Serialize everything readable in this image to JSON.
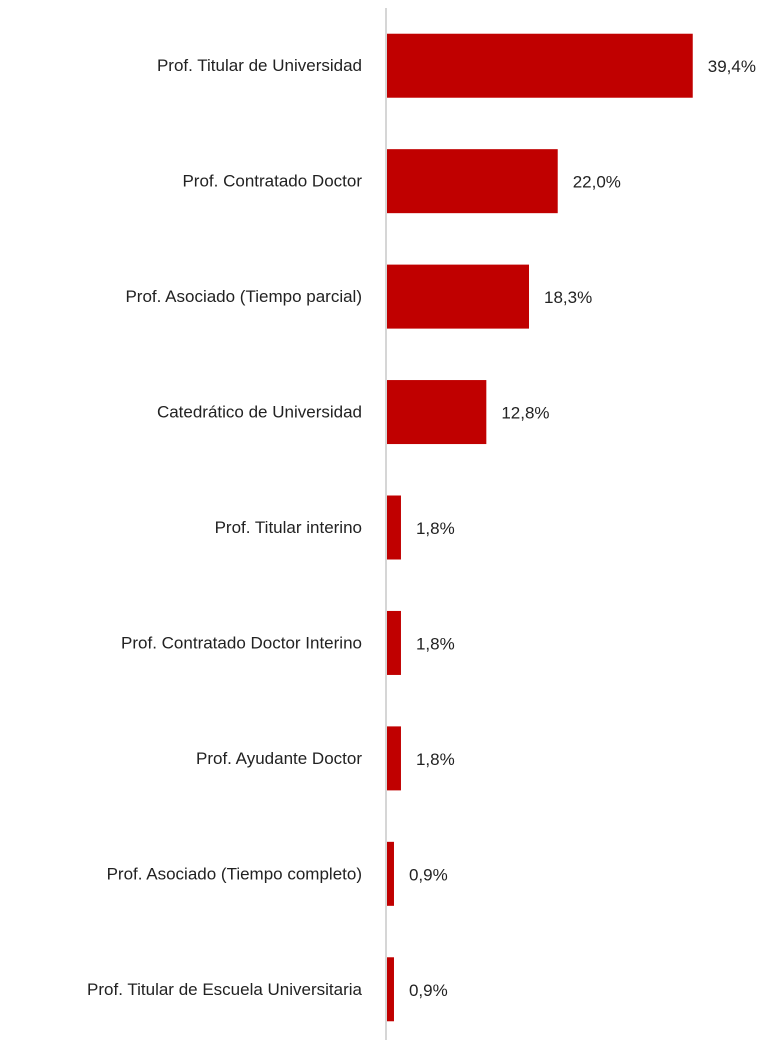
{
  "chart_data": {
    "type": "hbar",
    "categories": [
      "Prof. Titular de Universidad",
      "Prof. Contratado Doctor",
      "Prof. Asociado (Tiempo parcial)",
      "Catedrático de Universidad",
      "Prof. Titular interino",
      "Prof. Contratado Doctor Interino",
      "Prof. Ayudante Doctor",
      "Prof. Asociado (Tiempo completo)",
      "Prof. Titular de Escuela Universitaria"
    ],
    "values": [
      39.4,
      22.0,
      18.3,
      12.8,
      1.8,
      1.8,
      1.8,
      0.9,
      0.9
    ],
    "value_labels": [
      "39,4%",
      "22,0%",
      "18,3%",
      "12,8%",
      "1,8%",
      "1,8%",
      "1,8%",
      "0,9%",
      "0,9%"
    ],
    "color": "#c00000",
    "xlim": [
      0,
      50
    ]
  }
}
